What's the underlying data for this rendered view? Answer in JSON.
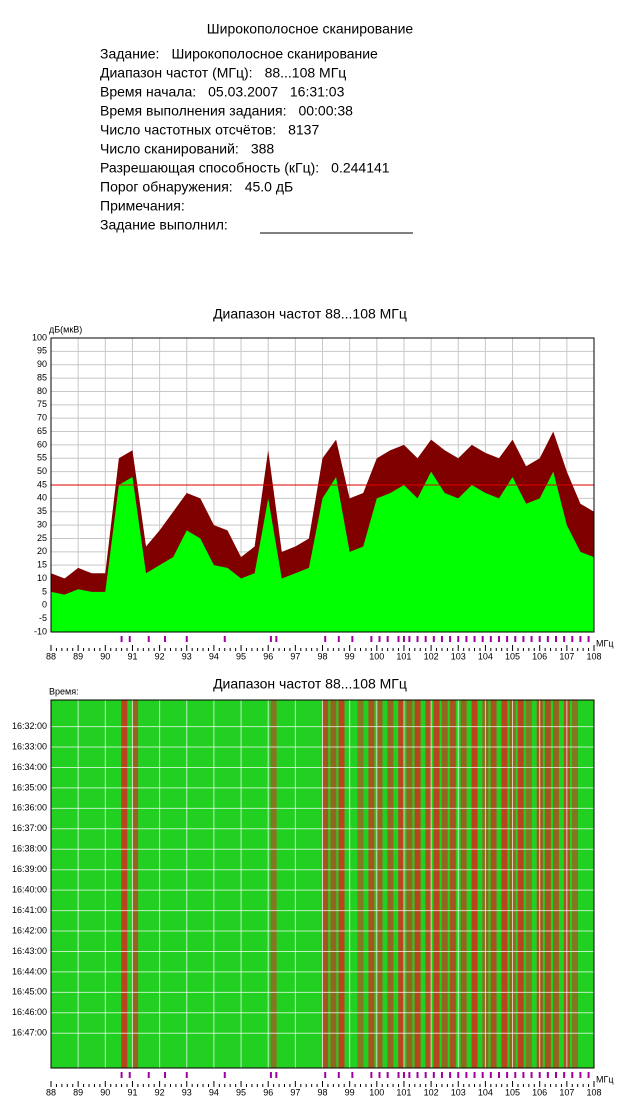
{
  "header": {
    "title": "Широкополосное сканирование",
    "fields": [
      {
        "label": "Задание:",
        "value": "Широкополосное сканирование"
      },
      {
        "label": "Диапазон частот (МГц):",
        "value": "88...108 МГц"
      },
      {
        "label": "Время начала:",
        "value": "05.03.2007   16:31:03"
      },
      {
        "label": "Время выполнения задания:",
        "value": "00:00:38"
      },
      {
        "label": "Число частотных отсчётов:",
        "value": "8137"
      },
      {
        "label": "Число сканирований:",
        "value": "388"
      },
      {
        "label": "Разрешающая способность (кГц):",
        "value": "0.244141"
      },
      {
        "label": "Порог обнаружения:",
        "value": "45.0 дБ"
      },
      {
        "label": "Примечания:"
      },
      {
        "label": "Задание выполнил:"
      }
    ]
  },
  "chart_data": [
    {
      "type": "spectrum",
      "title": "Диапазон частот 88...108 МГц",
      "y_label": "дБ(мкВ)",
      "x_label": "МГц",
      "x": [
        88,
        88.5,
        89,
        89.5,
        90,
        90.5,
        91,
        91.5,
        92,
        92.5,
        93,
        93.5,
        94,
        94.5,
        95,
        95.5,
        96,
        96.5,
        97,
        97.5,
        98,
        98.5,
        99,
        99.5,
        100,
        100.5,
        101,
        101.5,
        102,
        102.5,
        103,
        103.5,
        104,
        104.5,
        105,
        105.5,
        106,
        106.5,
        107,
        107.5,
        108
      ],
      "series": [
        {
          "name": "max",
          "color": "#800000",
          "values": [
            12,
            10,
            14,
            12,
            12,
            55,
            58,
            22,
            28,
            35,
            42,
            40,
            30,
            28,
            18,
            22,
            58,
            20,
            22,
            25,
            55,
            62,
            40,
            42,
            55,
            58,
            60,
            55,
            62,
            58,
            55,
            60,
            57,
            55,
            62,
            52,
            55,
            65,
            50,
            38,
            35
          ]
        },
        {
          "name": "current",
          "color": "#00ff00",
          "values": [
            5,
            4,
            6,
            5,
            5,
            45,
            48,
            12,
            15,
            18,
            28,
            25,
            15,
            14,
            10,
            12,
            40,
            10,
            12,
            14,
            40,
            48,
            20,
            22,
            40,
            42,
            45,
            40,
            50,
            42,
            40,
            45,
            42,
            40,
            48,
            38,
            40,
            50,
            30,
            20,
            18
          ]
        }
      ],
      "threshold": 45,
      "threshold_color": "#e00000",
      "markers": [
        90.6,
        90.9,
        91.6,
        92.2,
        93.0,
        94.4,
        96.1,
        96.3,
        98.1,
        98.6,
        99.1,
        99.8,
        100.1,
        100.4,
        100.8,
        101.0,
        101.2,
        101.5,
        101.8,
        102.1,
        102.4,
        102.7,
        103.0,
        103.3,
        103.6,
        103.9,
        104.2,
        104.5,
        104.8,
        105.1,
        105.4,
        105.7,
        106.0,
        106.3,
        106.6,
        106.9,
        107.2,
        107.5,
        107.8
      ],
      "marker_color": "#a000a0",
      "xlim": [
        88,
        108
      ],
      "xticks": [
        88,
        89,
        90,
        91,
        92,
        93,
        94,
        95,
        96,
        97,
        98,
        99,
        100,
        101,
        102,
        103,
        104,
        105,
        106,
        107,
        108
      ],
      "ylim": [
        -10,
        100
      ],
      "yticks": [
        -10,
        -5,
        0,
        5,
        10,
        15,
        20,
        25,
        30,
        35,
        40,
        45,
        50,
        55,
        60,
        65,
        70,
        75,
        80,
        85,
        90,
        95,
        100
      ],
      "grid": true
    },
    {
      "type": "waterfall",
      "title": "Диапазон частот 88...108 МГц",
      "y_label": "Время:",
      "x_label": "МГц",
      "background": "#22d022",
      "color": "#e02020",
      "x": [
        90.7,
        91.1,
        96.2,
        98.1,
        98.4,
        98.7,
        99.4,
        99.8,
        100.1,
        100.5,
        100.9,
        101.2,
        101.5,
        101.9,
        102.2,
        102.5,
        102.8,
        103.2,
        103.6,
        104.0,
        104.3,
        104.7,
        105.0,
        105.3,
        105.6,
        106.0,
        106.3,
        106.6,
        107.0,
        107.3
      ],
      "values": [
        80,
        60,
        50,
        70,
        60,
        80,
        50,
        70,
        60,
        60,
        80,
        60,
        80,
        70,
        80,
        60,
        70,
        60,
        80,
        60,
        70,
        80,
        60,
        80,
        50,
        70,
        70,
        60,
        70,
        50
      ],
      "y_categories": [
        "16:32:00",
        "16:33:00",
        "16:34:00",
        "16:35:00",
        "16:36:00",
        "16:37:00",
        "16:38:00",
        "16:39:00",
        "16:40:00",
        "16:41:00",
        "16:42:00",
        "16:43:00",
        "16:44:00",
        "16:45:00",
        "16:46:00",
        "16:47:00"
      ],
      "markers": [
        90.6,
        90.9,
        91.6,
        92.2,
        93.0,
        94.4,
        96.1,
        96.3,
        98.1,
        98.6,
        99.1,
        99.8,
        100.1,
        100.4,
        100.8,
        101.0,
        101.2,
        101.5,
        101.8,
        102.1,
        102.4,
        102.7,
        103.0,
        103.3,
        103.6,
        103.9,
        104.2,
        104.5,
        104.8,
        105.1,
        105.4,
        105.7,
        106.0,
        106.3,
        106.6,
        106.9,
        107.2,
        107.5,
        107.8
      ],
      "marker_color": "#a000a0",
      "xlim": [
        88,
        108
      ],
      "xticks": [
        88,
        89,
        90,
        91,
        92,
        93,
        94,
        95,
        96,
        97,
        98,
        99,
        100,
        101,
        102,
        103,
        104,
        105,
        106,
        107,
        108
      ],
      "grid": true
    }
  ]
}
